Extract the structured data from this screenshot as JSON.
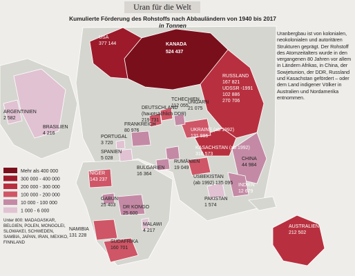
{
  "header": {
    "title": "Uran für die Welt",
    "subtitle": "Kumulierte Förderung des Rohstoffs nach Abbauländern von 1940 bis 2017",
    "subtitle_unit": "in Tonnen"
  },
  "sidebar": {
    "text": "Uranbergbau ist von kolonialen, neokolonialen und autoritären Strukturen geprägt. Der Rohstoff des Atomzeitalters wurde in den vergangenen 80 Jahren vor allem in Ländern Afrikas, in China, der Sowjetunion, der DDR, Russland und Kasachstan gefördert – oder dem Land indigener Völker in Australien und Nordamerika entnommen."
  },
  "countries": [
    {
      "lines": [
        "USA",
        "377 144"
      ]
    },
    {
      "lines": [
        "KANADA",
        "524 437"
      ]
    },
    {
      "lines": [
        "ARGENTINIEN",
        "2 582"
      ]
    },
    {
      "lines": [
        "BRASILIEN",
        "4 216"
      ]
    },
    {
      "lines": [
        "TCHECHIEN",
        "112 055"
      ]
    },
    {
      "lines": [
        "DEUTSCHLAND",
        "(hauptsächlich DDR)",
        "219 731"
      ]
    },
    {
      "lines": [
        "UNGARN",
        "21 075"
      ]
    },
    {
      "lines": [
        "RUSSLAND",
        "167 821",
        "UDSSR -1991",
        "102 886",
        "270 706"
      ]
    },
    {
      "lines": [
        "FRANKREICH",
        "80 976"
      ]
    },
    {
      "lines": [
        "PORTUGAL",
        "3 720"
      ]
    },
    {
      "lines": [
        "SPANIEN",
        "5 028"
      ]
    },
    {
      "lines": [
        "UKRAINE (ab 1992)",
        "131 986"
      ]
    },
    {
      "lines": [
        "KASACHSTAN (ab 1992)",
        "316 573"
      ]
    },
    {
      "lines": [
        "RUMÄNIEN",
        "19 049"
      ]
    },
    {
      "lines": [
        "BULGARIEN",
        "16 364"
      ]
    },
    {
      "lines": [
        "USBEKISTAN",
        "(ab 1992) 135 095"
      ]
    },
    {
      "lines": [
        "CHINA",
        "44 984"
      ]
    },
    {
      "lines": [
        "INDIEN",
        "12 679"
      ]
    },
    {
      "lines": [
        "PAKISTAN",
        "1 574"
      ]
    },
    {
      "lines": [
        "NIGER",
        "143 237"
      ]
    },
    {
      "lines": [
        "GABUN",
        "25 403"
      ]
    },
    {
      "lines": [
        "DR KONGO",
        "25 600"
      ]
    },
    {
      "lines": [
        "NAMIBIA",
        "131 228"
      ]
    },
    {
      "lines": [
        "MALAWI",
        "4 217"
      ]
    },
    {
      "lines": [
        "SÜDAFRIKA",
        "160 701"
      ]
    },
    {
      "lines": [
        "AUSTRALIEN",
        "212 502"
      ]
    }
  ],
  "legend": {
    "items": [
      {
        "label": "Mehr als 400 000",
        "color": "#7a0f1c"
      },
      {
        "label": "300 000 - 400 000",
        "color": "#9c1a2a"
      },
      {
        "label": "200 000 - 300 000",
        "color": "#b8303f"
      },
      {
        "label": "100 000 - 200 000",
        "color": "#cf5666"
      },
      {
        "label": "10 000 - 100 000",
        "color": "#c48aa5"
      },
      {
        "label": "1 000 - 6 000",
        "color": "#e0c2d2"
      }
    ],
    "note": "Unter 800: MADAGASKAR, BELGIEN, POLEN, MONGOLEI, SLOWAKEI, SCHWEDEN, SAMBIA, JAPAN, IRAN, MEXIKO, FINNLAND"
  }
}
